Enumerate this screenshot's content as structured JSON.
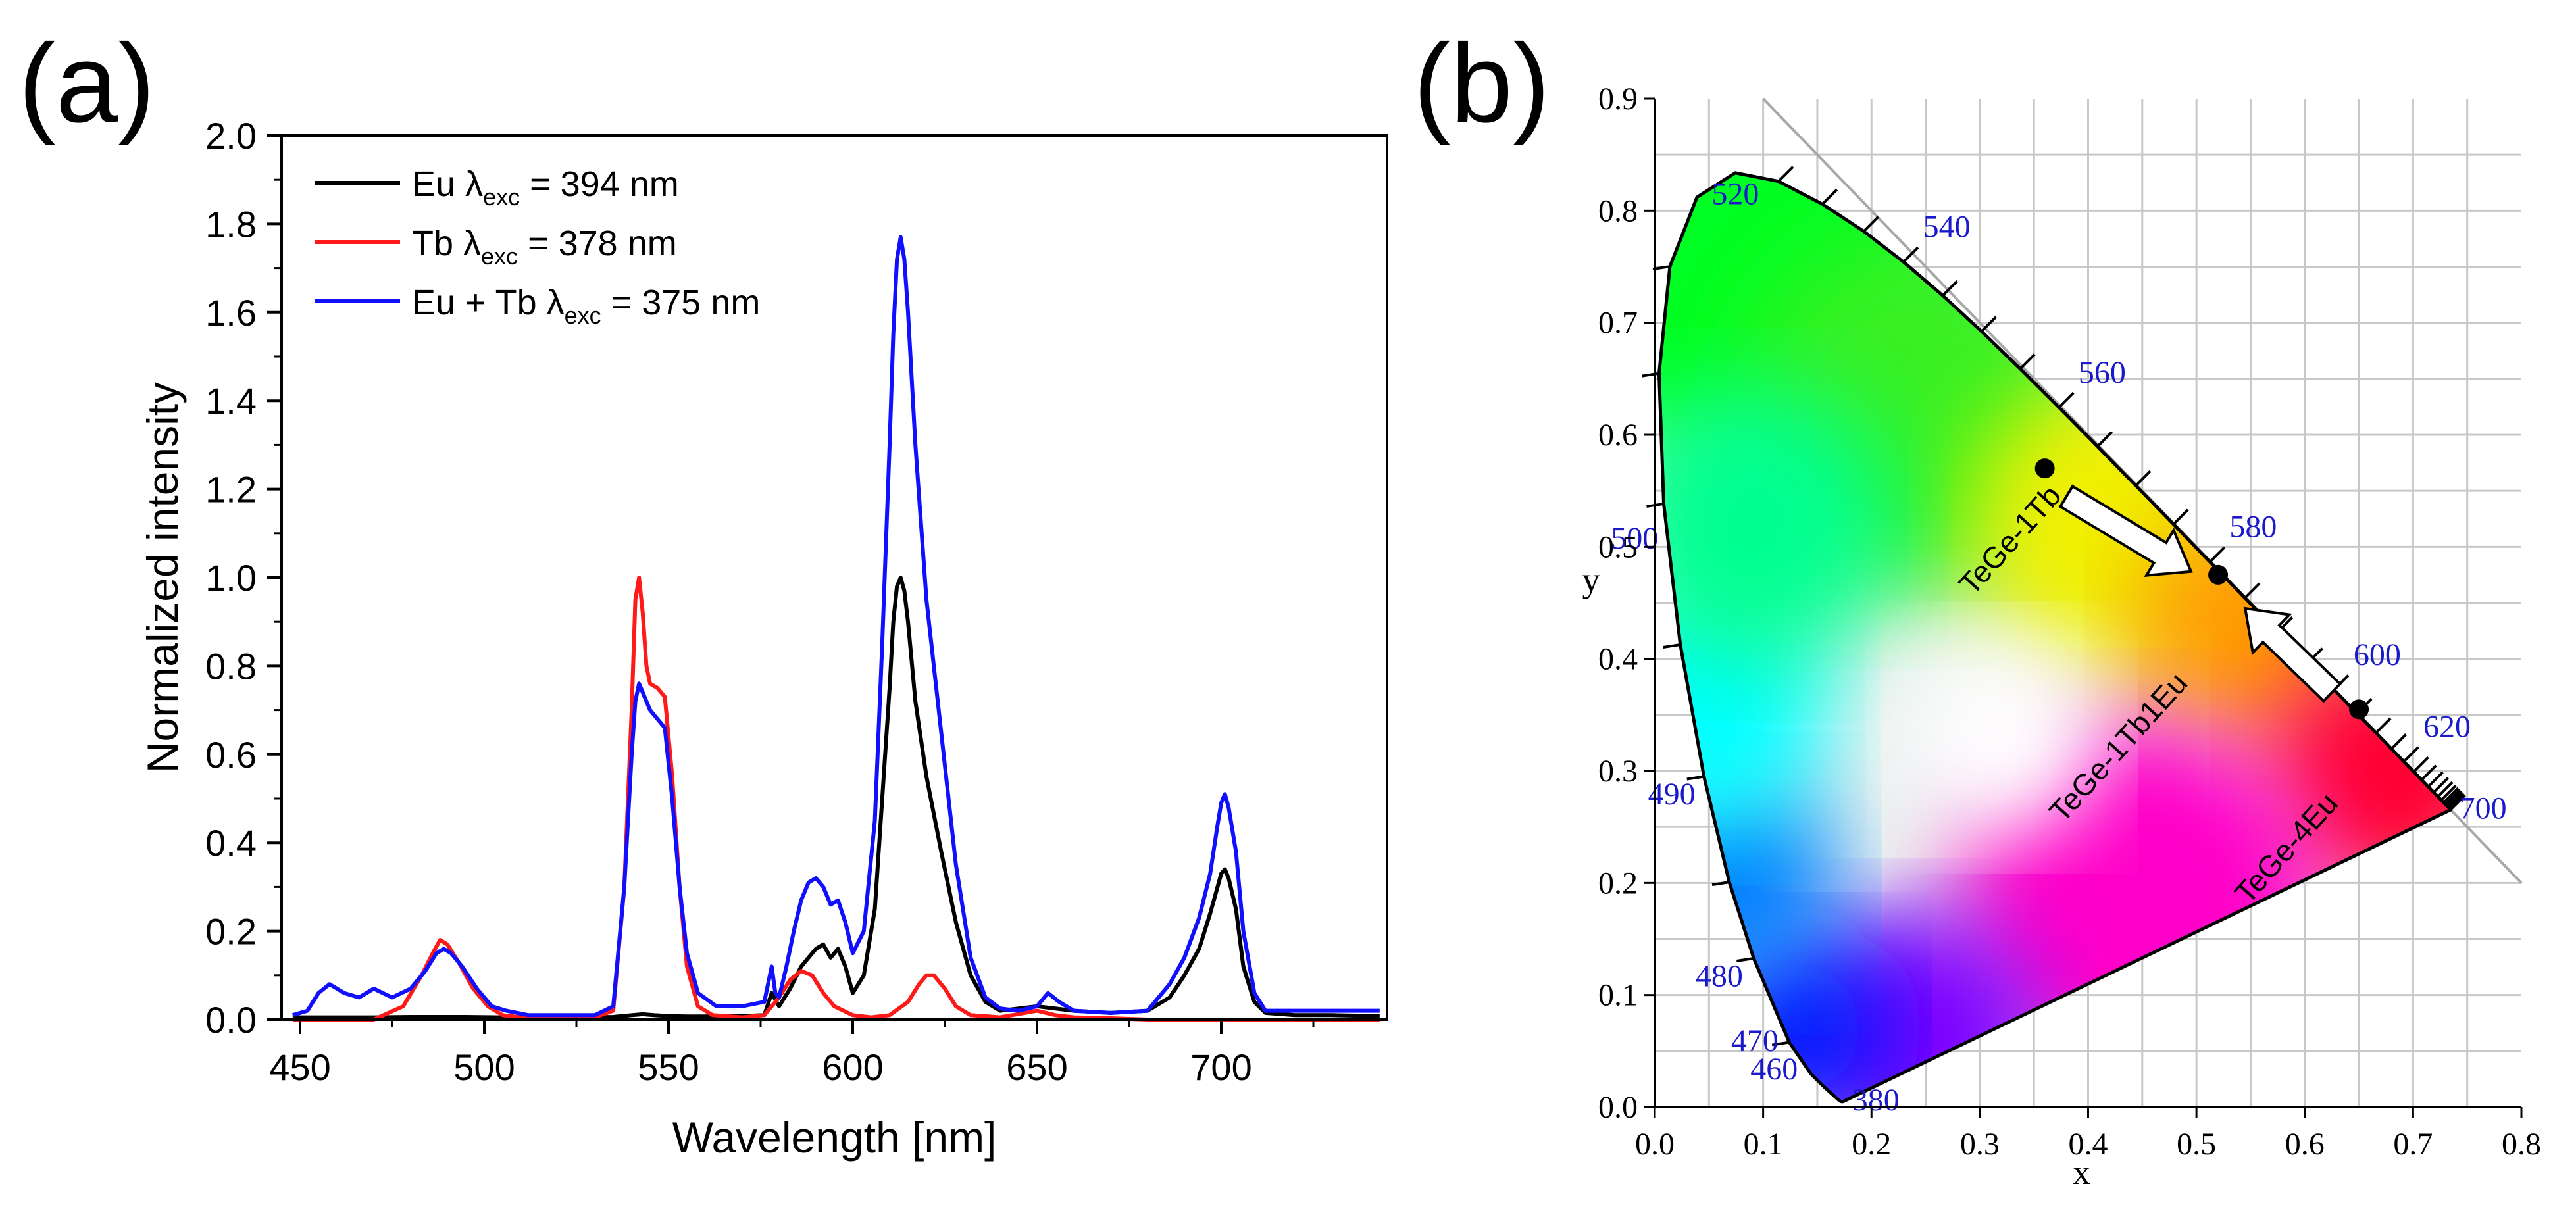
{
  "panels": {
    "a": "(a)",
    "b": "(b)"
  },
  "chart_data": [
    {
      "type": "line",
      "title": "",
      "xlabel": "Wavelength [nm]",
      "ylabel": "Normalized intensity",
      "xlim": [
        445,
        745
      ],
      "ylim": [
        0,
        2.0
      ],
      "xticks": [
        450,
        500,
        550,
        600,
        650,
        700
      ],
      "xtick_labels": [
        "450",
        "500",
        "550",
        "600",
        "650",
        "700"
      ],
      "yticks": [
        0,
        0.2,
        0.4,
        0.6,
        0.8,
        1.0,
        1.2,
        1.4,
        1.6,
        1.8,
        2.0
      ],
      "ytick_labels": [
        "0.0",
        "0.2",
        "0.4",
        "0.6",
        "0.8",
        "1.0",
        "1.2",
        "1.4",
        "1.6",
        "1.8",
        "2.0"
      ],
      "grid": false,
      "legend_position": "top-left",
      "series": [
        {
          "name": "Eu",
          "legend_prefix": "Eu λ",
          "legend_sub": "exc",
          "legend_suffix": " = 394 nm",
          "color": "#000000",
          "x": [
            448,
            460,
            470,
            480,
            488,
            495,
            505,
            520,
            535,
            540,
            543,
            546,
            550,
            555,
            560,
            570,
            576,
            578,
            580,
            583,
            586,
            588,
            590,
            592,
            594,
            596,
            598,
            600,
            603,
            606,
            608,
            610,
            611,
            612,
            613,
            614,
            615,
            617,
            620,
            624,
            628,
            632,
            636,
            640,
            650,
            660,
            670,
            680,
            686,
            690,
            694,
            697,
            699,
            700,
            701,
            702,
            704,
            706,
            709,
            712,
            720,
            730,
            743
          ],
          "y": [
            0.005,
            0.005,
            0.005,
            0.006,
            0.006,
            0.006,
            0.005,
            0.005,
            0.006,
            0.01,
            0.012,
            0.01,
            0.008,
            0.007,
            0.007,
            0.008,
            0.01,
            0.06,
            0.03,
            0.07,
            0.12,
            0.14,
            0.16,
            0.17,
            0.14,
            0.16,
            0.12,
            0.06,
            0.1,
            0.25,
            0.5,
            0.75,
            0.9,
            0.98,
            1.0,
            0.97,
            0.9,
            0.72,
            0.55,
            0.38,
            0.22,
            0.1,
            0.04,
            0.02,
            0.03,
            0.02,
            0.015,
            0.02,
            0.05,
            0.1,
            0.16,
            0.24,
            0.3,
            0.33,
            0.34,
            0.32,
            0.25,
            0.12,
            0.04,
            0.015,
            0.01,
            0.01,
            0.008
          ]
        },
        {
          "name": "Tb",
          "legend_prefix": "Tb λ",
          "legend_sub": "exc",
          "legend_suffix": " = 378 nm",
          "color": "#ff1a1a",
          "x": [
            448,
            460,
            470,
            478,
            483,
            486,
            488,
            490,
            493,
            497,
            501,
            505,
            510,
            520,
            530,
            535,
            538,
            540,
            541,
            542,
            543,
            544,
            545,
            547,
            549,
            551,
            553,
            555,
            558,
            562,
            570,
            576,
            580,
            583,
            586,
            589,
            592,
            595,
            600,
            605,
            610,
            615,
            618,
            620,
            622,
            625,
            628,
            632,
            640,
            650,
            655,
            660,
            670,
            680,
            700,
            720,
            743
          ],
          "y": [
            0.0,
            0.0,
            0.0,
            0.03,
            0.1,
            0.15,
            0.18,
            0.17,
            0.13,
            0.07,
            0.03,
            0.01,
            0.005,
            0.003,
            0.005,
            0.02,
            0.3,
            0.7,
            0.95,
            1.0,
            0.92,
            0.8,
            0.76,
            0.75,
            0.73,
            0.55,
            0.3,
            0.12,
            0.03,
            0.01,
            0.005,
            0.01,
            0.05,
            0.09,
            0.11,
            0.1,
            0.06,
            0.03,
            0.01,
            0.005,
            0.01,
            0.04,
            0.08,
            0.1,
            0.1,
            0.07,
            0.03,
            0.01,
            0.005,
            0.02,
            0.01,
            0.005,
            0.003,
            0.0,
            0.0,
            0.0,
            0.0
          ]
        },
        {
          "name": "Eu + Tb",
          "legend_prefix": "Eu + Tb λ",
          "legend_sub": "exc",
          "legend_suffix": " = 375 nm",
          "color": "#1010ff",
          "x": [
            448,
            452,
            455,
            458,
            462,
            466,
            470,
            475,
            480,
            484,
            487,
            489,
            491,
            494,
            498,
            502,
            506,
            512,
            520,
            530,
            535,
            538,
            540,
            541,
            542,
            543,
            545,
            547,
            549,
            551,
            553,
            555,
            558,
            563,
            570,
            576,
            578,
            579,
            580,
            582,
            584,
            586,
            588,
            590,
            592,
            594,
            596,
            598,
            600,
            603,
            606,
            608,
            610,
            611,
            612,
            613,
            614,
            615,
            617,
            620,
            624,
            628,
            632,
            636,
            640,
            645,
            650,
            653,
            656,
            660,
            670,
            680,
            686,
            690,
            694,
            697,
            699,
            700,
            701,
            702,
            704,
            706,
            709,
            712,
            720,
            730,
            743
          ],
          "y": [
            0.01,
            0.02,
            0.06,
            0.08,
            0.06,
            0.05,
            0.07,
            0.05,
            0.07,
            0.11,
            0.15,
            0.16,
            0.15,
            0.12,
            0.07,
            0.03,
            0.02,
            0.01,
            0.01,
            0.01,
            0.03,
            0.3,
            0.6,
            0.72,
            0.76,
            0.74,
            0.7,
            0.68,
            0.66,
            0.5,
            0.3,
            0.15,
            0.06,
            0.03,
            0.03,
            0.04,
            0.12,
            0.06,
            0.05,
            0.12,
            0.2,
            0.27,
            0.31,
            0.32,
            0.3,
            0.26,
            0.27,
            0.22,
            0.15,
            0.2,
            0.45,
            0.85,
            1.3,
            1.55,
            1.72,
            1.77,
            1.72,
            1.6,
            1.3,
            0.95,
            0.65,
            0.35,
            0.14,
            0.05,
            0.025,
            0.02,
            0.03,
            0.06,
            0.04,
            0.02,
            0.015,
            0.02,
            0.08,
            0.14,
            0.23,
            0.33,
            0.44,
            0.49,
            0.51,
            0.48,
            0.38,
            0.2,
            0.06,
            0.02,
            0.02,
            0.02,
            0.02
          ]
        }
      ]
    },
    {
      "type": "scatter",
      "title": "",
      "xlabel": "x",
      "ylabel": "y",
      "xlim": [
        0,
        0.8
      ],
      "ylim": [
        0,
        0.9
      ],
      "grid": true,
      "xticks": [
        0.0,
        0.1,
        0.2,
        0.3,
        0.4,
        0.5,
        0.6,
        0.7,
        0.8
      ],
      "xtick_labels": [
        "0.0",
        "0.1",
        "0.2",
        "0.3",
        "0.4",
        "0.5",
        "0.6",
        "0.7",
        "0.8"
      ],
      "yticks": [
        0.0,
        0.1,
        0.2,
        0.3,
        0.4,
        0.5,
        0.6,
        0.7,
        0.8,
        0.9
      ],
      "ytick_labels": [
        "0.0",
        "0.1",
        "0.2",
        "0.3",
        "0.4",
        "0.5",
        "0.6",
        "0.7",
        "0.8",
        "0.9"
      ],
      "spectral_locus": [
        [
          0.1741,
          0.005
        ],
        [
          0.1736,
          0.005
        ],
        [
          0.1733,
          0.0048
        ],
        [
          0.1726,
          0.0048
        ],
        [
          0.1714,
          0.0051
        ],
        [
          0.1689,
          0.0069
        ],
        [
          0.1644,
          0.0109
        ],
        [
          0.1566,
          0.0177
        ],
        [
          0.144,
          0.0297
        ],
        [
          0.1241,
          0.0578
        ],
        [
          0.0913,
          0.1327
        ],
        [
          0.0687,
          0.2007
        ],
        [
          0.0454,
          0.295
        ],
        [
          0.0235,
          0.4127
        ],
        [
          0.0082,
          0.5384
        ],
        [
          0.0039,
          0.6548
        ],
        [
          0.0139,
          0.7502
        ],
        [
          0.0389,
          0.812
        ],
        [
          0.0743,
          0.8338
        ],
        [
          0.1142,
          0.8262
        ],
        [
          0.1547,
          0.8059
        ],
        [
          0.1929,
          0.7816
        ],
        [
          0.2296,
          0.7543
        ],
        [
          0.2658,
          0.7243
        ],
        [
          0.3016,
          0.6923
        ],
        [
          0.3373,
          0.6589
        ],
        [
          0.3731,
          0.6245
        ],
        [
          0.4087,
          0.5896
        ],
        [
          0.4441,
          0.5547
        ],
        [
          0.4788,
          0.5202
        ],
        [
          0.5125,
          0.4866
        ],
        [
          0.5448,
          0.4544
        ],
        [
          0.5752,
          0.4242
        ],
        [
          0.6029,
          0.3965
        ],
        [
          0.627,
          0.3725
        ],
        [
          0.6482,
          0.3514
        ],
        [
          0.6658,
          0.334
        ],
        [
          0.6801,
          0.3197
        ],
        [
          0.6915,
          0.3083
        ],
        [
          0.7006,
          0.2993
        ],
        [
          0.7079,
          0.292
        ],
        [
          0.714,
          0.2859
        ],
        [
          0.719,
          0.2809
        ],
        [
          0.723,
          0.277
        ],
        [
          0.726,
          0.274
        ],
        [
          0.7283,
          0.2717
        ],
        [
          0.73,
          0.27
        ],
        [
          0.7311,
          0.2689
        ],
        [
          0.732,
          0.268
        ],
        [
          0.7327,
          0.2673
        ],
        [
          0.7334,
          0.2666
        ],
        [
          0.734,
          0.266
        ],
        [
          0.7344,
          0.2656
        ],
        [
          0.7346,
          0.2654
        ],
        [
          0.7347,
          0.2653
        ]
      ],
      "wavelength_labels": [
        {
          "text": "520",
          "x": 0.0743,
          "y": 0.8338,
          "anchor": "middle",
          "dx": 0,
          "dy": -0.028
        },
        {
          "text": "540",
          "x": 0.2296,
          "y": 0.7543,
          "anchor": "start",
          "dx": 0.018,
          "dy": 0.022
        },
        {
          "text": "560",
          "x": 0.3731,
          "y": 0.6245,
          "anchor": "start",
          "dx": 0.018,
          "dy": 0.022
        },
        {
          "text": "500",
          "x": 0.0082,
          "y": 0.5384,
          "anchor": "end",
          "dx": -0.005,
          "dy": -0.04
        },
        {
          "text": "580",
          "x": 0.5125,
          "y": 0.4866,
          "anchor": "start",
          "dx": 0.018,
          "dy": 0.022
        },
        {
          "text": "600",
          "x": 0.627,
          "y": 0.3725,
          "anchor": "start",
          "dx": 0.018,
          "dy": 0.022
        },
        {
          "text": "620",
          "x": 0.6915,
          "y": 0.3083,
          "anchor": "start",
          "dx": 0.018,
          "dy": 0.022
        },
        {
          "text": "700",
          "x": 0.7347,
          "y": 0.2653,
          "anchor": "start",
          "dx": 0.008,
          "dy": -0.008
        },
        {
          "text": "490",
          "x": 0.0454,
          "y": 0.295,
          "anchor": "end",
          "dx": -0.008,
          "dy": -0.025
        },
        {
          "text": "480",
          "x": 0.0913,
          "y": 0.1327,
          "anchor": "end",
          "dx": -0.01,
          "dy": -0.025
        },
        {
          "text": "470",
          "x": 0.1241,
          "y": 0.0578,
          "anchor": "end",
          "dx": -0.01,
          "dy": -0.008
        },
        {
          "text": "460",
          "x": 0.144,
          "y": 0.0297,
          "anchor": "end",
          "dx": -0.012,
          "dy": -0.005
        },
        {
          "text": "380",
          "x": 0.1741,
          "y": 0.005,
          "anchor": "start",
          "dx": 0.008,
          "dy": -0.008
        }
      ],
      "points": [
        {
          "name": "TeGe-1Tb",
          "x": 0.36,
          "y": 0.57
        },
        {
          "name": "TeGe-1Tb1Eu",
          "x": 0.52,
          "y": 0.475
        },
        {
          "name": "TeGe-4Eu",
          "x": 0.65,
          "y": 0.355
        }
      ],
      "arrows": [
        {
          "from": [
            0.38,
            0.545
          ],
          "to": [
            0.495,
            0.478
          ]
        },
        {
          "from": [
            0.625,
            0.37
          ],
          "to": [
            0.545,
            0.445
          ]
        }
      ],
      "reference_line": {
        "from": [
          0.1,
          0.9
        ],
        "to": [
          0.8,
          0.2
        ]
      }
    }
  ]
}
